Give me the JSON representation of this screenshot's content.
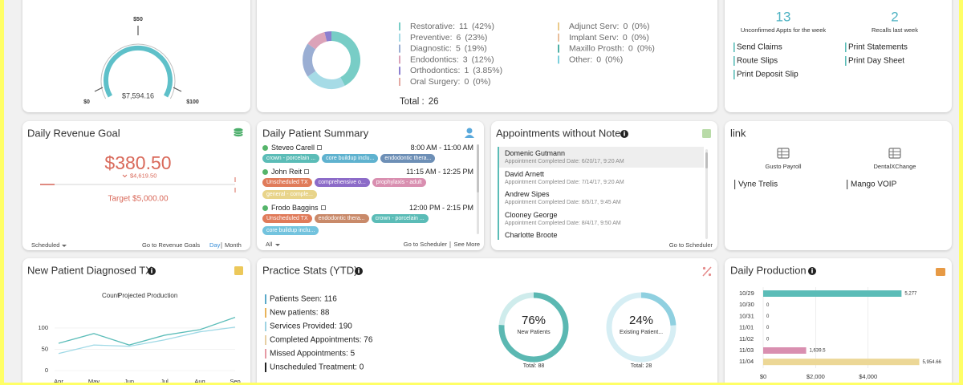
{
  "gauge_card": {
    "value_label": "$7,594.16",
    "scale_labels": [
      "$0",
      "$50",
      "$100"
    ]
  },
  "procedure_card": {
    "items": [
      {
        "label": "Restorative:",
        "count": 11,
        "percent": "(42%)",
        "color": "#78cdc6"
      },
      {
        "label": "Preventive:",
        "count": 6,
        "percent": "(23%)",
        "color": "#a6dbe6"
      },
      {
        "label": "Diagnostic:",
        "count": 5,
        "percent": "(19%)",
        "color": "#9aaed3"
      },
      {
        "label": "Endodontics:",
        "count": 3,
        "percent": "(12%)",
        "color": "#dba3b9"
      },
      {
        "label": "Orthodontics:",
        "count": 1,
        "percent": "(3.85%)",
        "color": "#8b7fcf"
      },
      {
        "label": "Oral Surgery:",
        "count": 0,
        "percent": "(0%)",
        "color": "#e4a9a3"
      },
      {
        "label": "Adjunct Serv:",
        "count": 0,
        "percent": "(0%)",
        "color": "#ebcb8b"
      },
      {
        "label": "Implant Serv:",
        "count": 0,
        "percent": "(0%)",
        "color": "#e9bf9c"
      },
      {
        "label": "Maxillo Prosth:",
        "count": 0,
        "percent": "(0%)",
        "color": "#4fb0a6"
      },
      {
        "label": "Other:",
        "count": 0,
        "percent": "(0%)",
        "color": "#7cd0dc"
      }
    ],
    "total_label": "Total :",
    "total": 26
  },
  "weekly_card": {
    "stats": [
      {
        "value": 13,
        "label": "Unconfirmed Appts for the week"
      },
      {
        "value": 2,
        "label": "Recalls last week"
      }
    ],
    "links": [
      "Send Claims",
      "Print Statements",
      "Route Slips",
      "Print Day Sheet",
      "Print Deposit Slip"
    ]
  },
  "revenue_goal_card": {
    "title": "Daily Revenue Goal",
    "amount": "$380.50",
    "remaining": "$4,619.50",
    "target": "Target $5,000.00",
    "filter": "Scheduled",
    "link": "Go to Revenue Goals",
    "views": [
      "Day",
      "Month"
    ]
  },
  "patient_summary_card": {
    "title": "Daily Patient Summary",
    "patients": [
      {
        "name": "Steveo Carell",
        "time": "8:00 AM - 11:00 AM",
        "tags": [
          {
            "text": "crown - porcelain ...",
            "color": "#5bbcb7"
          },
          {
            "text": "core buildup inclu...",
            "color": "#5fb2cf"
          },
          {
            "text": "endodontic thera...",
            "color": "#6d8fb6"
          }
        ]
      },
      {
        "name": "John Reit",
        "time": "11:15 AM - 12:25 PM",
        "tags": [
          {
            "text": "Unscheduled TX",
            "color": "#e07b5a"
          },
          {
            "text": "comprehensive o...",
            "color": "#8c6bc8"
          },
          {
            "text": "prophylaxis - adult",
            "color": "#d98fb0"
          },
          {
            "text": "general - comple...",
            "color": "#e8d48a"
          }
        ]
      },
      {
        "name": "Frodo Baggins",
        "time": "12:00 PM - 2:15 PM",
        "tags": [
          {
            "text": "Unscheduled TX",
            "color": "#e07b5a"
          },
          {
            "text": "endodontic thera...",
            "color": "#c98a6a"
          },
          {
            "text": "crown - porcelain ...",
            "color": "#5bbcb7"
          },
          {
            "text": "core buildup inclu...",
            "color": "#73c3de"
          }
        ]
      }
    ],
    "filter": "All",
    "links": [
      "Go to Scheduler",
      "See More"
    ]
  },
  "appointments_card": {
    "title": "Appointments without Note",
    "items": [
      {
        "name": "Domenic Gutmann",
        "date": "Appointment Completed Date: 6/20/17, 9:20 AM"
      },
      {
        "name": "David Arnett",
        "date": "Appointment Completed Date: 7/14/17, 9:20 AM"
      },
      {
        "name": "Andrew Sipes",
        "date": "Appointment Completed Date: 8/5/17, 9:45 AM"
      },
      {
        "name": "Clooney George",
        "date": "Appointment Completed Date: 8/4/17, 9:50 AM"
      },
      {
        "name": "Charlotte Broote"
      }
    ],
    "link": "Go to Scheduler"
  },
  "link_card": {
    "title": "link",
    "apps": [
      "Gusto Payroll",
      "DentalXChange"
    ],
    "links": [
      "Vyne Trelis",
      "Mango VOIP"
    ]
  },
  "diagnosed_tx_card": {
    "title": "New Patient Diagnosed TX",
    "type": "line",
    "categories": [
      "Apr",
      "May",
      "Jun",
      "Jul",
      "Aug",
      "Sep"
    ],
    "series": [
      {
        "name": "Count",
        "color": "#5cbdb9",
        "values": [
          64,
          87,
          60,
          83,
          96,
          125
        ]
      },
      {
        "name": "Projected Production",
        "color": "#9fd9e6",
        "values": [
          40,
          60,
          57,
          72,
          91,
          102
        ]
      }
    ],
    "ylim": [
      0,
      130
    ],
    "yticks": [
      0,
      50,
      100
    ]
  },
  "practice_stats_card": {
    "title": "Practice Stats (YTD)",
    "items": [
      {
        "text": "Patients Seen: 116",
        "color": "#5aa9c9"
      },
      {
        "text": "New patients: 88",
        "color": "#e8b35a"
      },
      {
        "text": "Services Provided: 190",
        "color": "#9fd3e3"
      },
      {
        "text": "Completed Appointments: 76",
        "color": "#e6cfa3"
      },
      {
        "text": "Missed Appointments: 5",
        "color": "#e59aa4"
      },
      {
        "text": "Unscheduled Treatment: 0",
        "color": "#222222"
      }
    ],
    "circles": [
      {
        "percent": {
          "value": 76,
          "label": "76%"
        },
        "caption": "New Patients",
        "total": "Total: 88",
        "color": "#5bb8b2",
        "track": "#cfecec"
      },
      {
        "percent": {
          "value": 24,
          "label": "24%"
        },
        "caption": "Existing Patient...",
        "total": "Total: 28",
        "color": "#8fd0e0",
        "track": "#d6eef4"
      }
    ]
  },
  "daily_production_card": {
    "title": "Daily Production",
    "type": "bar",
    "categories": [
      "10/29",
      "10/30",
      "10/31",
      "11/01",
      "11/02",
      "11/03",
      "11/04"
    ],
    "values": [
      5277,
      0,
      0,
      0,
      0,
      1639.5,
      5954.66
    ],
    "value_labels": [
      "5,277",
      "0",
      "0",
      "0",
      "0",
      "1,639.5",
      "5,954.66"
    ],
    "colors": [
      "#5bbcb7",
      "#5bbcb7",
      "#5bbcb7",
      "#5bbcb7",
      "#5bbcb7",
      "#d98fb0",
      "#ecd796"
    ],
    "xlim": [
      0,
      6000
    ],
    "xticks": [
      {
        "value": 0,
        "label": "$0"
      },
      {
        "value": 2000,
        "label": "$2,000"
      },
      {
        "value": 4000,
        "label": "$4,000"
      }
    ],
    "grid": true
  }
}
